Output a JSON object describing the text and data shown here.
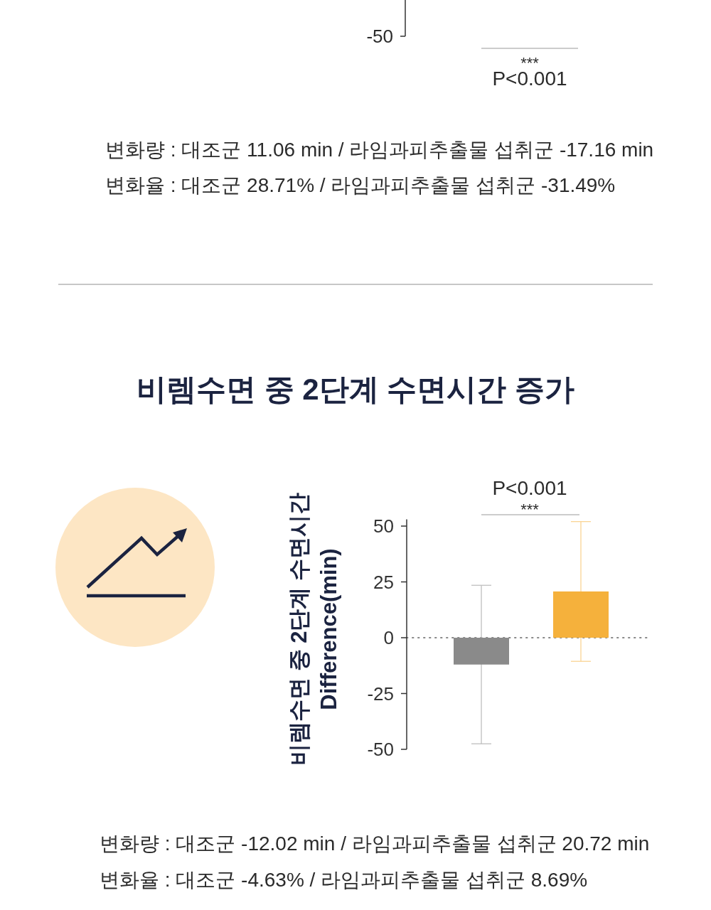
{
  "chart_data": [
    {
      "type": "other",
      "annotations": [
        "-50",
        "***",
        "P<0.001",
        "변화량 : 대조군 11.06 min / 라임과피추출물 섭취군 -17.16 min",
        "변화율 : 대조군 28.71% / 라임과피추출물 섭취군 -31.49%"
      ]
    },
    {
      "type": "bar",
      "title": "비렘수면 중 2단계 수면시간 증가",
      "ylabel": "비렘수면 중 2단계 수면시간\nDifference(min)",
      "categories": [
        null,
        null
      ],
      "values": [
        -12.02,
        20.72
      ],
      "colors": [
        "#8a8a8a",
        "#f5b13c"
      ],
      "errors": [
        35.5,
        31.3
      ],
      "ylim": [
        -50,
        53
      ],
      "yticks": [
        -50,
        -25,
        0,
        25,
        50
      ],
      "ref_lines": [
        {
          "axis": "y",
          "value": 0,
          "color": "#888888",
          "line_style": "dotted"
        }
      ],
      "annotations": [
        "P<0.001",
        "***",
        "변화량 : 대조군 -12.02 min / 라임과피추출물 섭취군 20.72 min",
        "변화율 : 대조군 -4.63% / 라임과피추출물 섭취군 8.69%"
      ]
    }
  ]
}
